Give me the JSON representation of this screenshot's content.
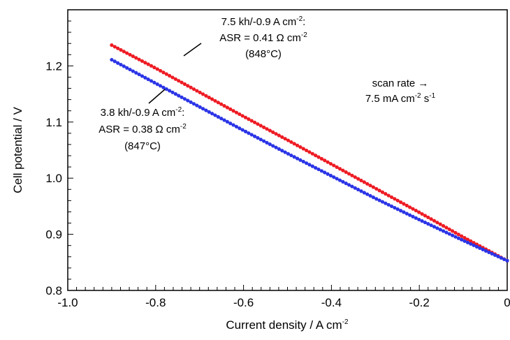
{
  "chart_data": {
    "type": "line",
    "xlabel": "Current density / A cm",
    "xlabel_sup": "-2",
    "ylabel": "Cell potential / V",
    "xlim": [
      -1.0,
      0
    ],
    "ylim": [
      0.8,
      1.3
    ],
    "x_ticks": [
      {
        "value": -1.0,
        "label": "-1.0"
      },
      {
        "value": -0.8,
        "label": "-0.8"
      },
      {
        "value": -0.6,
        "label": "-0.6"
      },
      {
        "value": -0.4,
        "label": "-0.4"
      },
      {
        "value": -0.2,
        "label": "-0.2"
      },
      {
        "value": 0,
        "label": "0"
      }
    ],
    "y_ticks": [
      {
        "value": 0.8,
        "label": "0.8"
      },
      {
        "value": 0.9,
        "label": "0.9"
      },
      {
        "value": 1.0,
        "label": "1.0"
      },
      {
        "value": 1.1,
        "label": "1.1"
      },
      {
        "value": 1.2,
        "label": "1.2"
      }
    ],
    "grid": false,
    "series": [
      {
        "color": "#ee1c24",
        "x": [
          -0.9,
          -0.8,
          -0.7,
          -0.6,
          -0.5,
          -0.4,
          -0.3,
          -0.2,
          -0.1,
          0.0
        ],
        "y": [
          1.237,
          1.196,
          1.153,
          1.11,
          1.068,
          1.025,
          0.982,
          0.939,
          0.895,
          0.853
        ]
      },
      {
        "color": "#2b35e6",
        "x": [
          -0.9,
          -0.8,
          -0.7,
          -0.6,
          -0.5,
          -0.4,
          -0.3,
          -0.2,
          -0.1,
          0.0
        ],
        "y": [
          1.211,
          1.169,
          1.127,
          1.085,
          1.044,
          1.004,
          0.964,
          0.926,
          0.889,
          0.853
        ]
      }
    ],
    "annotations": {
      "red": {
        "line1": "7.5 kh/-0.9 A cm",
        "line1_sup": "-2",
        "line1_tail": ":",
        "line2": "ASR = 0.41 Ω cm",
        "line2_sup": "-2",
        "line3": "(848°C)"
      },
      "blue": {
        "line1": "3.8 kh/-0.9 A cm",
        "line1_sup": "-2",
        "line1_tail": ":",
        "line2": "ASR = 0.38 Ω cm",
        "line2_sup": "-2",
        "line3": "(847°C)"
      },
      "scan": {
        "line1": "scan rate →",
        "line2a": "7.5 mA cm",
        "line2a_sup": "-2",
        "line2b": " s",
        "line2b_sup": "-1"
      }
    }
  }
}
